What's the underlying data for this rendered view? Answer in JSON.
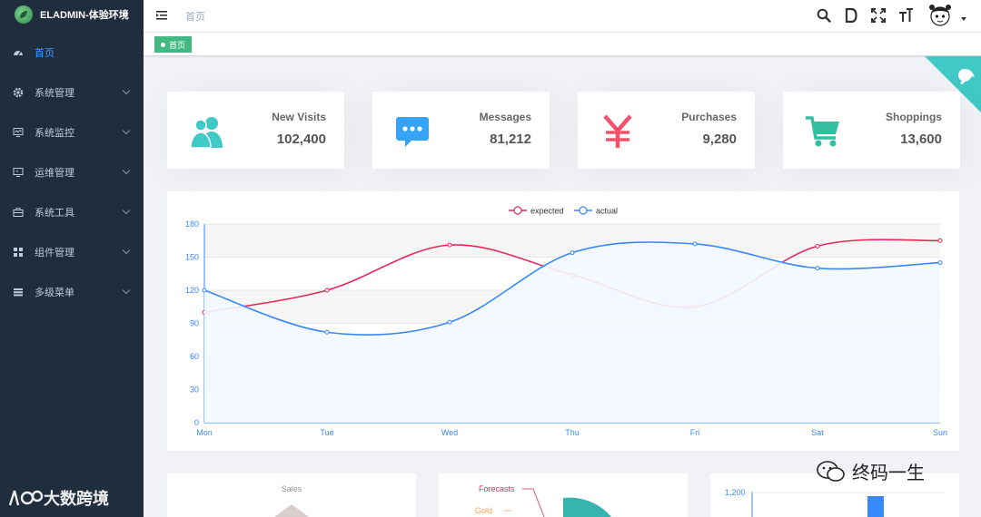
{
  "app": {
    "title": "ELADMIN-体验环境"
  },
  "sidebar": {
    "items": [
      {
        "label": "首页",
        "icon": "dashboard-icon",
        "active": true,
        "expandable": false
      },
      {
        "label": "系统管理",
        "icon": "gear-icon",
        "active": false,
        "expandable": true
      },
      {
        "label": "系统监控",
        "icon": "monitor-icon",
        "active": false,
        "expandable": true
      },
      {
        "label": "运维管理",
        "icon": "ops-icon",
        "active": false,
        "expandable": true
      },
      {
        "label": "系统工具",
        "icon": "toolbox-icon",
        "active": false,
        "expandable": true
      },
      {
        "label": "组件管理",
        "icon": "grid-icon",
        "active": false,
        "expandable": true
      },
      {
        "label": "多级菜单",
        "icon": "list-icon",
        "active": false,
        "expandable": true
      }
    ]
  },
  "navbar": {
    "breadcrumb": "首页",
    "icons": [
      "search-icon",
      "doc-icon",
      "fullscreen-icon",
      "font-size-icon"
    ]
  },
  "tags": [
    {
      "label": "首页",
      "active": true
    }
  ],
  "panels": [
    {
      "label": "New Visits",
      "value": "102,400",
      "icon": "people-icon",
      "color": "#40c9c6"
    },
    {
      "label": "Messages",
      "value": "81,212",
      "icon": "message-icon",
      "color": "#36a3f7"
    },
    {
      "label": "Purchases",
      "value": "9,280",
      "icon": "yen-icon",
      "color": "#f4516c"
    },
    {
      "label": "Shoppings",
      "value": "13,600",
      "icon": "cart-icon",
      "color": "#34bfa3"
    }
  ],
  "chart_data": {
    "type": "line",
    "categories": [
      "Mon",
      "Tue",
      "Wed",
      "Thu",
      "Fri",
      "Sat",
      "Sun"
    ],
    "series": [
      {
        "name": "expected",
        "values": [
          100,
          120,
          161,
          134,
          105,
          160,
          165
        ],
        "color": "#e5295b"
      },
      {
        "name": "actual",
        "values": [
          120,
          82,
          91,
          154,
          162,
          140,
          145
        ],
        "color": "#3888fa"
      }
    ],
    "yticks": [
      0,
      30,
      60,
      90,
      120,
      150,
      180
    ],
    "ylim": [
      0,
      180
    ],
    "legend": "top-center"
  },
  "bottom": {
    "sales_label": "Sales",
    "funnel_labels": [
      "Forecasts",
      "Gold"
    ],
    "bar_tick": "1,200"
  },
  "watermarks": {
    "left": "大数跨境",
    "right": "终码一生"
  }
}
